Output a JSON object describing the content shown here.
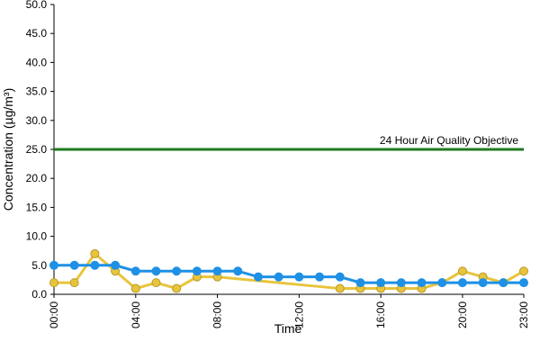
{
  "chart_data": {
    "type": "line",
    "xlabel": "Time",
    "ylabel": "Concentration (µg/m³)",
    "xlim": [
      0,
      23
    ],
    "xticks": [
      {
        "value": 0,
        "label": "00:00"
      },
      {
        "value": 4,
        "label": "04:00"
      },
      {
        "value": 8,
        "label": "08:00"
      },
      {
        "value": 12,
        "label": "12:00"
      },
      {
        "value": 16,
        "label": "16:00"
      },
      {
        "value": 20,
        "label": "20:00"
      },
      {
        "value": 23,
        "label": "23:00"
      }
    ],
    "ylim": [
      0,
      50
    ],
    "yticks": [
      {
        "value": 0,
        "label": "0.0"
      },
      {
        "value": 5,
        "label": "5.0"
      },
      {
        "value": 10,
        "label": "10.0"
      },
      {
        "value": 15,
        "label": "15.0"
      },
      {
        "value": 20,
        "label": "20.0"
      },
      {
        "value": 25,
        "label": "25.0"
      },
      {
        "value": 30,
        "label": "30.0"
      },
      {
        "value": 35,
        "label": "35.0"
      },
      {
        "value": 40,
        "label": "40.0"
      },
      {
        "value": 45,
        "label": "45.0"
      },
      {
        "value": 50,
        "label": "50.0"
      }
    ],
    "grid": false,
    "series": [
      {
        "name": "24 Hour Air Quality Objective",
        "color": "#1f7a1f",
        "markers": false,
        "x": [
          0,
          23
        ],
        "values": [
          25,
          25
        ]
      },
      {
        "color": "#e8c43c",
        "markers": true,
        "x": [
          0,
          1,
          2,
          3,
          4,
          5,
          6,
          7,
          8,
          14,
          15,
          16,
          17,
          18,
          19,
          20,
          21,
          22,
          23
        ],
        "values": [
          2,
          2,
          7,
          4,
          1,
          2,
          1,
          3,
          3,
          1,
          1,
          1,
          1,
          1,
          2,
          4,
          3,
          2,
          4
        ]
      },
      {
        "color": "#1e90e6",
        "markers": true,
        "x": [
          0,
          1,
          2,
          3,
          4,
          5,
          6,
          7,
          8,
          9,
          10,
          11,
          12,
          13,
          14,
          15,
          16,
          17,
          18,
          19,
          20,
          21,
          22,
          23
        ],
        "values": [
          5,
          5,
          5,
          5,
          4,
          4,
          4,
          4,
          4,
          4,
          3,
          3,
          3,
          3,
          3,
          2,
          2,
          2,
          2,
          2,
          2,
          2,
          2,
          2
        ]
      }
    ]
  }
}
